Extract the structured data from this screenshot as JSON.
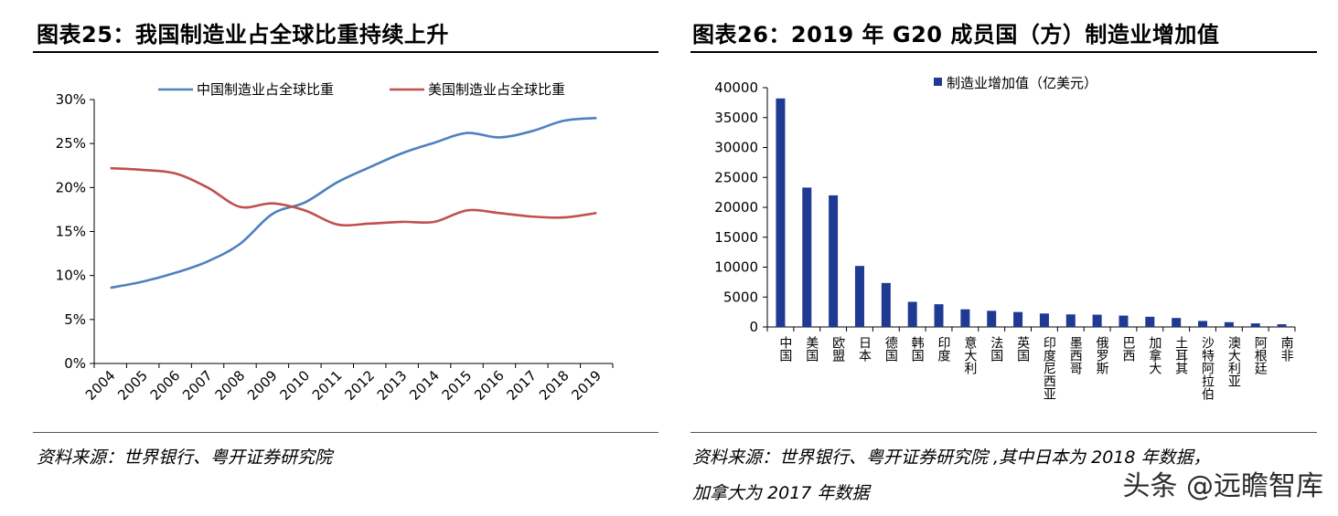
{
  "left_panel": {
    "figure_title": "图表25：我国制造业占全球比重持续上升",
    "source": "资料来源：世界银行、粤开证券研究院"
  },
  "right_panel": {
    "figure_title": "图表26：2019 年 G20 成员国（方）制造业增加值",
    "source_line1": "资料来源：世界银行、粤开证券研究院 ,其中日本为 2018 年数据，",
    "source_line2": "加拿大为 2017 年数据"
  },
  "watermark": "头条 @远瞻智库",
  "colors": {
    "china": "#4f81bd",
    "usa": "#c0504d",
    "bar": "#1f3a93",
    "axis": "#000000"
  },
  "chart_data": [
    {
      "type": "line",
      "title": "",
      "x": [
        "2004",
        "2005",
        "2006",
        "2007",
        "2008",
        "2009",
        "2010",
        "2011",
        "2012",
        "2013",
        "2014",
        "2015",
        "2016",
        "2017",
        "2018",
        "2019"
      ],
      "series": [
        {
          "name": "中国制造业占全球比重",
          "values": [
            8.6,
            9.3,
            10.3,
            11.6,
            13.6,
            17.0,
            18.3,
            20.6,
            22.3,
            23.9,
            25.1,
            26.2,
            25.7,
            26.4,
            27.6,
            27.9
          ]
        },
        {
          "name": "美国制造业占全球比重",
          "values": [
            22.2,
            22.0,
            21.6,
            20.0,
            17.8,
            18.2,
            17.4,
            15.8,
            15.9,
            16.1,
            16.1,
            17.4,
            17.1,
            16.7,
            16.6,
            17.1
          ]
        }
      ],
      "y_ticks": [
        "0%",
        "5%",
        "10%",
        "15%",
        "20%",
        "25%",
        "30%"
      ],
      "ylim": [
        0,
        30
      ],
      "xlabel": "",
      "ylabel": "",
      "legend_position": "top"
    },
    {
      "type": "bar",
      "title": "",
      "categories": [
        "中国",
        "美国",
        "欧盟",
        "日本",
        "德国",
        "韩国",
        "印度",
        "意大利",
        "法国",
        "英国",
        "印度尼西亚",
        "墨西哥",
        "俄罗斯",
        "巴西",
        "加拿大",
        "土耳其",
        "沙特阿拉伯",
        "澳大利亚",
        "阿根廷",
        "南非"
      ],
      "series": [
        {
          "name": "制造业增加值（亿美元）",
          "values": [
            38200,
            23300,
            22000,
            10200,
            7350,
            4200,
            3800,
            2950,
            2700,
            2500,
            2250,
            2100,
            2050,
            1900,
            1700,
            1500,
            1000,
            800,
            600,
            450
          ]
        }
      ],
      "y_ticks": [
        "0",
        "5000",
        "10000",
        "15000",
        "20000",
        "25000",
        "30000",
        "35000",
        "40000"
      ],
      "ylim": [
        0,
        40000
      ],
      "xlabel": "",
      "ylabel": "",
      "legend_position": "top"
    }
  ]
}
